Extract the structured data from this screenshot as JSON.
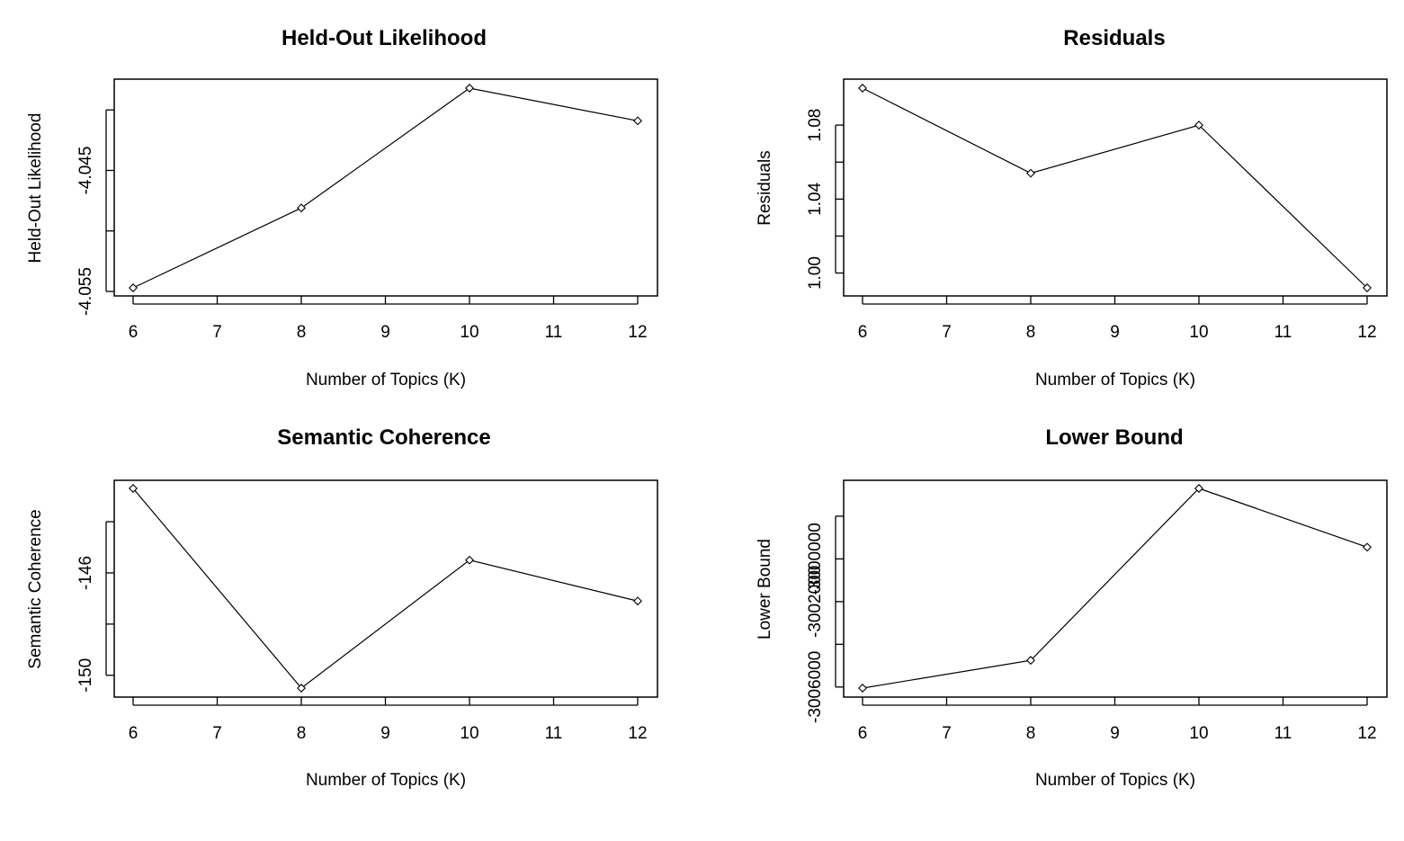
{
  "chart_data": [
    {
      "type": "line",
      "title": "Held-Out Likelihood",
      "xlabel": "Number of Topics (K)",
      "ylabel": "Held-Out Likelihood",
      "x": [
        6,
        8,
        10,
        12
      ],
      "values": [
        -4.0547,
        -4.0481,
        -4.0382,
        -4.0409
      ],
      "xlim": [
        6,
        12
      ],
      "ylim": [
        -4.0547,
        -4.0382
      ],
      "xticks": [
        "6",
        "7",
        "8",
        "9",
        "10",
        "11",
        "12"
      ],
      "yticks": [
        {
          "value": -4.055,
          "label": "-4.055"
        },
        {
          "value": -4.05,
          "label": ""
        },
        {
          "value": -4.045,
          "label": "-4.045"
        },
        {
          "value": -4.04,
          "label": ""
        }
      ],
      "grid": false,
      "marker": "open-diamond"
    },
    {
      "type": "line",
      "title": "Residuals",
      "xlabel": "Number of Topics (K)",
      "ylabel": "Residuals",
      "x": [
        6,
        8,
        10,
        12
      ],
      "values": [
        1.1,
        1.054,
        1.08,
        0.992
      ],
      "xlim": [
        6,
        12
      ],
      "ylim": [
        0.992,
        1.1
      ],
      "xticks": [
        "6",
        "7",
        "8",
        "9",
        "10",
        "11",
        "12"
      ],
      "yticks": [
        {
          "value": 1.0,
          "label": "1.00"
        },
        {
          "value": 1.02,
          "label": ""
        },
        {
          "value": 1.04,
          "label": "1.04"
        },
        {
          "value": 1.06,
          "label": ""
        },
        {
          "value": 1.08,
          "label": "1.08"
        }
      ],
      "grid": false,
      "marker": "open-diamond"
    },
    {
      "type": "line",
      "title": "Semantic Coherence",
      "xlabel": "Number of Topics (K)",
      "ylabel": "Semantic Coherence",
      "x": [
        6,
        8,
        10,
        12
      ],
      "values": [
        -142.7,
        -150.5,
        -145.5,
        -147.1
      ],
      "xlim": [
        6,
        12
      ],
      "ylim": [
        -150.5,
        -142.7
      ],
      "xticks": [
        "6",
        "7",
        "8",
        "9",
        "10",
        "11",
        "12"
      ],
      "yticks": [
        {
          "value": -150,
          "label": "-150"
        },
        {
          "value": -148,
          "label": ""
        },
        {
          "value": -146,
          "label": "-146"
        },
        {
          "value": -144,
          "label": ""
        }
      ],
      "grid": false,
      "marker": "open-diamond"
    },
    {
      "type": "line",
      "title": "Lower Bound",
      "xlabel": "Number of Topics (K)",
      "ylabel": "Lower Bound",
      "x": [
        6,
        8,
        10,
        12
      ],
      "values": [
        -3006050,
        -3004750,
        -2996700,
        -2999450
      ],
      "xlim": [
        6,
        12
      ],
      "ylim": [
        -3006050,
        -2996700
      ],
      "xticks": [
        "6",
        "7",
        "8",
        "9",
        "10",
        "11",
        "12"
      ],
      "yticks": [
        {
          "value": -3006000,
          "label": "-3006000"
        },
        {
          "value": -3004000,
          "label": ""
        },
        {
          "value": -3002000,
          "label": "-3002000"
        },
        {
          "value": -3000000,
          "label": "-3000000"
        },
        {
          "value": -2998000,
          "label": ""
        }
      ],
      "grid": false,
      "marker": "open-diamond"
    }
  ]
}
